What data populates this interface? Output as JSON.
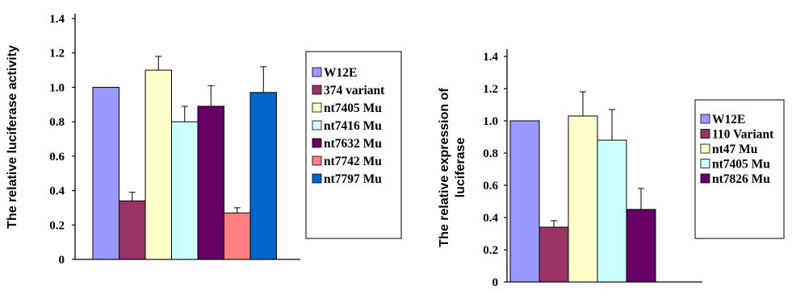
{
  "chart_data": [
    {
      "type": "bar",
      "title": "",
      "xlabel": "",
      "ylabel": "The relative luciferase activity",
      "ylim": [
        0,
        1.4
      ],
      "yticks": [
        "0",
        "0.2",
        "0.4",
        "0.6",
        "0.8",
        "1.0",
        "1.2",
        "1.4"
      ],
      "grid": false,
      "legend": "right",
      "series": [
        {
          "name": "W12E",
          "value": 1.0,
          "error": 0,
          "color": "#9999ff"
        },
        {
          "name": "374 variant",
          "value": 0.34,
          "error": 0.05,
          "color": "#993366"
        },
        {
          "name": "nt7405 Mu",
          "value": 1.1,
          "error": 0.08,
          "color": "#ffffcc"
        },
        {
          "name": "nt7416 Mu",
          "value": 0.8,
          "error": 0.09,
          "color": "#ccffff"
        },
        {
          "name": "nt7632 Mu",
          "value": 0.89,
          "error": 0.12,
          "color": "#660066"
        },
        {
          "name": "nt7742 Mu",
          "value": 0.27,
          "error": 0.03,
          "color": "#ff8080"
        },
        {
          "name": "nt7797 Mu",
          "value": 0.97,
          "error": 0.15,
          "color": "#0066cc"
        }
      ]
    },
    {
      "type": "bar",
      "title": "",
      "xlabel": "",
      "ylabel": "The relative expression of luciferase",
      "ylabel_lines": [
        "The relative expression of",
        "luciferase"
      ],
      "ylim": [
        0,
        1.4
      ],
      "yticks": [
        "0",
        "0.2",
        "0.4",
        "0.6",
        "0.8",
        "1.0",
        "1.2",
        "1.4"
      ],
      "grid": false,
      "legend": "right",
      "series": [
        {
          "name": "W12E",
          "value": 1.0,
          "error": 0,
          "color": "#9999ff"
        },
        {
          "name": "110 Variant",
          "value": 0.34,
          "error": 0.04,
          "color": "#993366"
        },
        {
          "name": "nt47 Mu",
          "value": 1.03,
          "error": 0.15,
          "color": "#ffffcc"
        },
        {
          "name": "nt7405 Mu",
          "value": 0.88,
          "error": 0.19,
          "color": "#ccffff"
        },
        {
          "name": "nt7826 Mu",
          "value": 0.45,
          "error": 0.13,
          "color": "#660066"
        }
      ]
    }
  ]
}
